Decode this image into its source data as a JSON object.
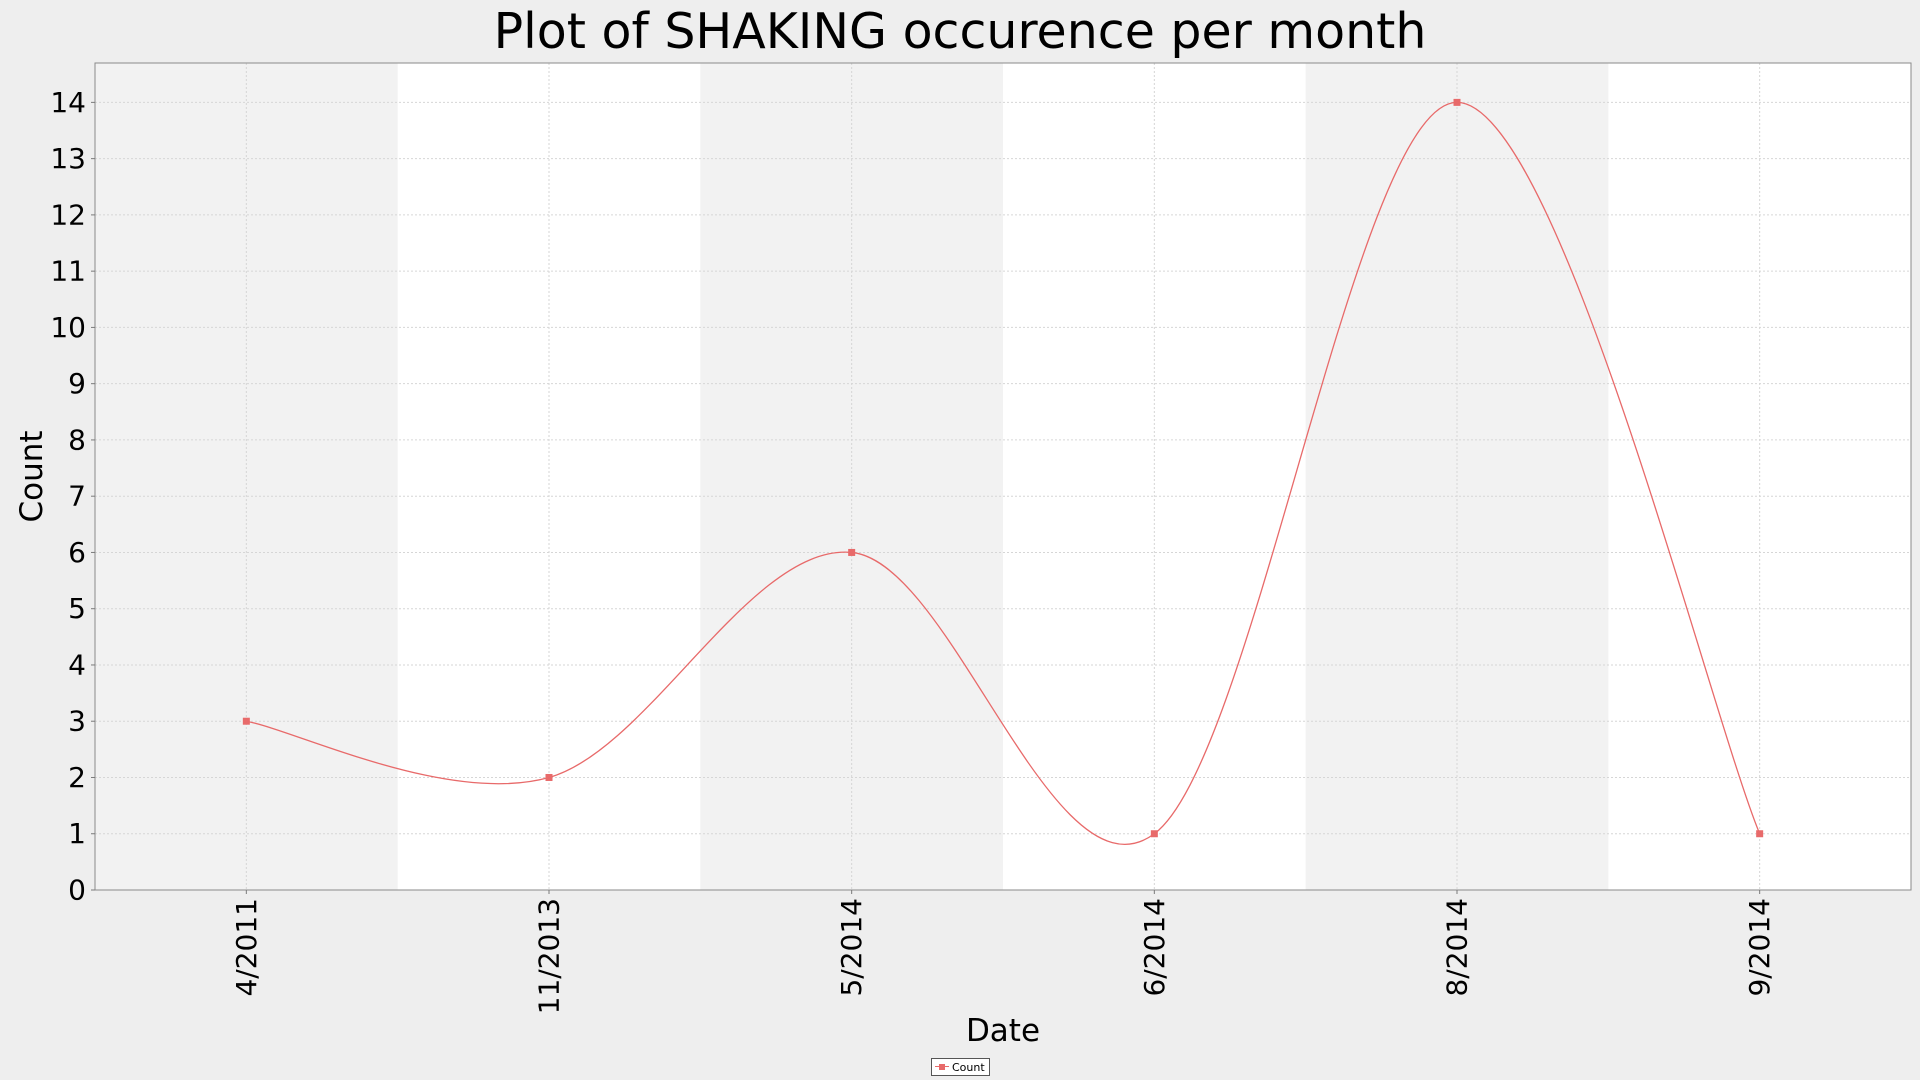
{
  "chart_data": {
    "type": "line",
    "title": "Plot of SHAKING occurence per month",
    "xlabel": "Date",
    "ylabel": "Count",
    "categories": [
      "4/2011",
      "11/2013",
      "5/2014",
      "6/2014",
      "8/2014",
      "9/2014"
    ],
    "series": [
      {
        "name": "Count",
        "values": [
          3,
          2,
          6,
          1,
          14,
          1
        ],
        "color": "#e86a6a"
      }
    ],
    "ylim": [
      0,
      14.7
    ],
    "yticks": [
      0,
      1,
      2,
      3,
      4,
      5,
      6,
      7,
      8,
      9,
      10,
      11,
      12,
      13,
      14
    ],
    "curve": "smoothed",
    "grid": true,
    "alternating_category_bands": true,
    "legend": "bottom-center",
    "colors": {
      "page_background": "#eeeeee",
      "plot_background": "#ffffff",
      "band_background": "#f2f2f2",
      "gridline": "#d6d6d6",
      "series": "#e86a6a"
    }
  }
}
